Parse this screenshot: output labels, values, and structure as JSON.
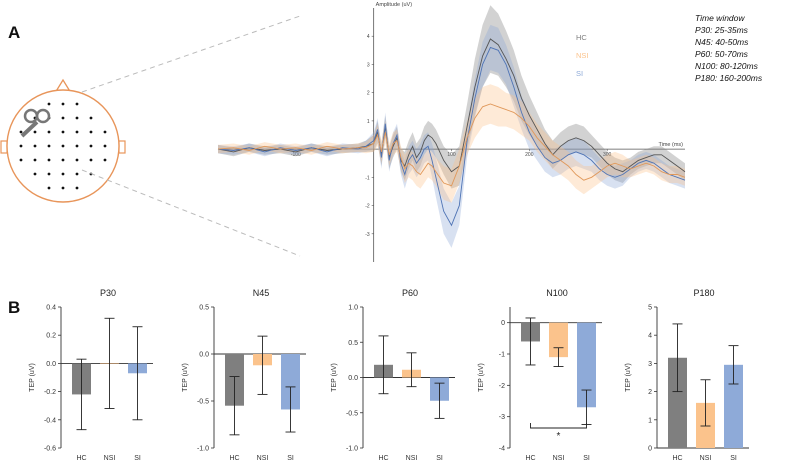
{
  "panel_labels": {
    "a": "A",
    "b": "B"
  },
  "colors": {
    "hc": "#7f7f7f",
    "nsi": "#fbc38c",
    "si": "#8eaad8",
    "axis": "#333333",
    "head": "#e8955a",
    "guide": "#bbbbbb"
  },
  "head_icons": {
    "coil": "tms-coil-icon",
    "head": "head-electrode-map-icon"
  },
  "time_windows": {
    "title": "Time window",
    "items": [
      "P30: 25-35ms",
      "N45: 40-50ms",
      "P60: 50-70ms",
      "N100: 80-120ms",
      "P180: 160-200ms"
    ]
  },
  "chart_data": [
    {
      "type": "line",
      "id": "tep-waveform",
      "title": "",
      "ylabel": "Amplitude (uV)",
      "xlabel": "Time (ms)",
      "xlim": [
        -200,
        400
      ],
      "ylim": [
        -4,
        5
      ],
      "x_ticks": [
        -100,
        100,
        200,
        300
      ],
      "y_ticks": [
        -3,
        -2,
        -1,
        1,
        2,
        3,
        4
      ],
      "legend": [
        "HC",
        "NSI",
        "SI"
      ],
      "x": [
        -200,
        -180,
        -160,
        -140,
        -120,
        -100,
        -80,
        -60,
        -40,
        -20,
        -10,
        0,
        5,
        10,
        15,
        20,
        25,
        30,
        35,
        40,
        45,
        50,
        55,
        60,
        65,
        70,
        75,
        80,
        90,
        100,
        110,
        120,
        130,
        140,
        150,
        160,
        170,
        180,
        190,
        200,
        210,
        220,
        230,
        240,
        250,
        260,
        270,
        280,
        290,
        300,
        310,
        320,
        330,
        340,
        350,
        360,
        370,
        380,
        390,
        400
      ],
      "series": [
        {
          "name": "HC",
          "values": [
            0,
            -0.1,
            0.05,
            -0.05,
            0,
            -0.1,
            0.05,
            -0.05,
            0,
            0.05,
            0.1,
            0.2,
            0.6,
            -0.2,
            0.8,
            -0.3,
            0.1,
            0.4,
            -0.4,
            -0.6,
            -0.2,
            0.1,
            -0.3,
            -0.1,
            0.3,
            0.5,
            0.4,
            0.2,
            -0.4,
            -0.8,
            -0.6,
            0.8,
            2.2,
            3.3,
            3.9,
            3.7,
            3.2,
            2.6,
            1.8,
            1.2,
            0.7,
            0.2,
            -0.2,
            0.1,
            0.3,
            0.4,
            0.3,
            0.1,
            -0.2,
            -0.5,
            -0.7,
            -0.8,
            -0.6,
            -0.4,
            -0.3,
            -0.2,
            -0.2,
            -0.4,
            -0.6,
            -0.8
          ],
          "ci": [
            0.15,
            0.15,
            0.15,
            0.15,
            0.15,
            0.15,
            0.15,
            0.15,
            0.15,
            0.15,
            0.2,
            0.3,
            0.4,
            0.4,
            0.4,
            0.4,
            0.4,
            0.4,
            0.4,
            0.5,
            0.5,
            0.5,
            0.5,
            0.5,
            0.5,
            0.5,
            0.5,
            0.5,
            0.5,
            0.6,
            0.7,
            0.8,
            1.0,
            1.1,
            1.2,
            1.1,
            1.0,
            0.9,
            0.8,
            0.7,
            0.6,
            0.5,
            0.5,
            0.5,
            0.5,
            0.5,
            0.5,
            0.4,
            0.4,
            0.4,
            0.4,
            0.4,
            0.3,
            0.3,
            0.3,
            0.3,
            0.3,
            0.3,
            0.3,
            0.3
          ]
        },
        {
          "name": "NSI",
          "values": [
            0,
            0.05,
            -0.05,
            0.1,
            0,
            0.05,
            -0.05,
            0.1,
            0,
            0.05,
            0.05,
            0.2,
            0.5,
            -0.1,
            0.6,
            -0.2,
            0.2,
            0.3,
            -0.3,
            -0.7,
            -0.5,
            -0.6,
            -0.8,
            -0.9,
            -0.7,
            -0.5,
            -0.6,
            -0.8,
            -1.2,
            -1.3,
            -0.6,
            0.4,
            1.1,
            1.5,
            1.6,
            1.5,
            1.4,
            1.3,
            1.1,
            0.8,
            0.4,
            0.1,
            -0.2,
            -0.4,
            -0.6,
            -0.9,
            -1.1,
            -1.0,
            -0.8,
            -0.6,
            -0.5,
            -0.6,
            -0.7,
            -0.6,
            -0.5,
            -0.6,
            -0.8,
            -0.9,
            -0.9,
            -1.0
          ],
          "ci": [
            0.15,
            0.15,
            0.15,
            0.15,
            0.15,
            0.15,
            0.15,
            0.15,
            0.15,
            0.15,
            0.2,
            0.3,
            0.4,
            0.4,
            0.4,
            0.4,
            0.4,
            0.4,
            0.4,
            0.5,
            0.5,
            0.5,
            0.5,
            0.5,
            0.5,
            0.5,
            0.5,
            0.5,
            0.6,
            0.6,
            0.6,
            0.6,
            0.7,
            0.7,
            0.7,
            0.7,
            0.6,
            0.6,
            0.6,
            0.5,
            0.5,
            0.5,
            0.5,
            0.5,
            0.5,
            0.5,
            0.5,
            0.4,
            0.4,
            0.4,
            0.4,
            0.4,
            0.3,
            0.3,
            0.3,
            0.3,
            0.3,
            0.3,
            0.3,
            0.3
          ]
        },
        {
          "name": "SI",
          "values": [
            0,
            -0.05,
            0.05,
            -0.1,
            0.05,
            -0.05,
            0.05,
            -0.1,
            0.05,
            0,
            0.1,
            0.3,
            0.7,
            -0.3,
            0.9,
            -0.4,
            0.2,
            0.5,
            -0.5,
            -0.9,
            -0.4,
            -0.2,
            -0.5,
            -0.3,
            0.0,
            0.1,
            -0.4,
            -1.0,
            -2.2,
            -2.7,
            -2.0,
            0.3,
            1.8,
            3.0,
            3.6,
            3.5,
            3.0,
            2.2,
            1.3,
            0.6,
            0.1,
            -0.3,
            -0.5,
            -0.4,
            -0.2,
            -0.1,
            -0.2,
            -0.4,
            -0.7,
            -0.9,
            -1.0,
            -0.9,
            -0.7,
            -0.5,
            -0.4,
            -0.5,
            -0.7,
            -0.9,
            -1.0,
            -1.1
          ],
          "ci": [
            0.15,
            0.15,
            0.15,
            0.15,
            0.15,
            0.15,
            0.15,
            0.15,
            0.15,
            0.15,
            0.2,
            0.3,
            0.4,
            0.4,
            0.4,
            0.4,
            0.4,
            0.4,
            0.4,
            0.5,
            0.5,
            0.5,
            0.5,
            0.5,
            0.5,
            0.5,
            0.6,
            0.7,
            0.8,
            0.8,
            0.7,
            0.6,
            0.7,
            0.8,
            0.8,
            0.8,
            0.7,
            0.7,
            0.6,
            0.6,
            0.5,
            0.5,
            0.5,
            0.5,
            0.5,
            0.5,
            0.5,
            0.4,
            0.4,
            0.4,
            0.4,
            0.4,
            0.3,
            0.3,
            0.3,
            0.3,
            0.3,
            0.3,
            0.3,
            0.3
          ]
        }
      ]
    },
    {
      "type": "bar",
      "id": "P30",
      "title": "P30",
      "ylabel": "TEP (uV)",
      "categories": [
        "HC",
        "NSI",
        "SI"
      ],
      "values": [
        -0.22,
        0.0,
        -0.07
      ],
      "errors": [
        0.25,
        0.32,
        0.33
      ],
      "ylim": [
        -0.6,
        0.4
      ],
      "ticks": [
        -0.6,
        -0.4,
        -0.2,
        0.0,
        0.2,
        0.4
      ],
      "tick_labels": [
        "-0.6",
        "-0.4",
        "-0.2",
        "0.0",
        "0.2",
        "0.4"
      ]
    },
    {
      "type": "bar",
      "id": "N45",
      "title": "N45",
      "ylabel": "TEP (uV)",
      "categories": [
        "HC",
        "NSI",
        "SI"
      ],
      "values": [
        -0.55,
        -0.12,
        -0.59
      ],
      "errors": [
        0.31,
        0.31,
        0.24
      ],
      "ylim": [
        -1.0,
        0.5
      ],
      "ticks": [
        -1.0,
        -0.5,
        0.0,
        0.5
      ],
      "tick_labels": [
        "-1.0",
        "-0.5",
        "0.0",
        "0.5"
      ]
    },
    {
      "type": "bar",
      "id": "P60",
      "title": "P60",
      "ylabel": "TEP (uV)",
      "categories": [
        "HC",
        "NSI",
        "SI"
      ],
      "values": [
        0.18,
        0.11,
        -0.33
      ],
      "errors": [
        0.41,
        0.24,
        0.25
      ],
      "ylim": [
        -1.0,
        1.0
      ],
      "ticks": [
        -1.0,
        -0.5,
        0.0,
        0.5,
        1.0
      ],
      "tick_labels": [
        "-1.0",
        "-0.5",
        "0.0",
        "0.5",
        "1.0"
      ]
    },
    {
      "type": "bar",
      "id": "N100",
      "title": "N100",
      "ylabel": "TEP (uV)",
      "categories": [
        "HC",
        "NSI",
        "SI"
      ],
      "values": [
        -0.6,
        -1.1,
        -2.7
      ],
      "errors": [
        0.75,
        0.3,
        0.55
      ],
      "ylim": [
        -4,
        0.5
      ],
      "ticks": [
        -4,
        -3,
        -2,
        -1,
        0
      ],
      "tick_labels": [
        "-4",
        "-3",
        "-2",
        "-1",
        "0"
      ],
      "significance": {
        "from": "HC",
        "to": "SI",
        "label": "*"
      }
    },
    {
      "type": "bar",
      "id": "P180",
      "title": "P180",
      "ylabel": "TEP (uV)",
      "categories": [
        "HC",
        "NSI",
        "SI"
      ],
      "values": [
        3.2,
        1.6,
        2.95
      ],
      "errors": [
        1.2,
        0.82,
        0.68
      ],
      "ylim": [
        0,
        5
      ],
      "ticks": [
        0,
        1,
        2,
        3,
        4,
        5
      ],
      "tick_labels": [
        "0",
        "1",
        "2",
        "3",
        "4",
        "5"
      ]
    }
  ]
}
